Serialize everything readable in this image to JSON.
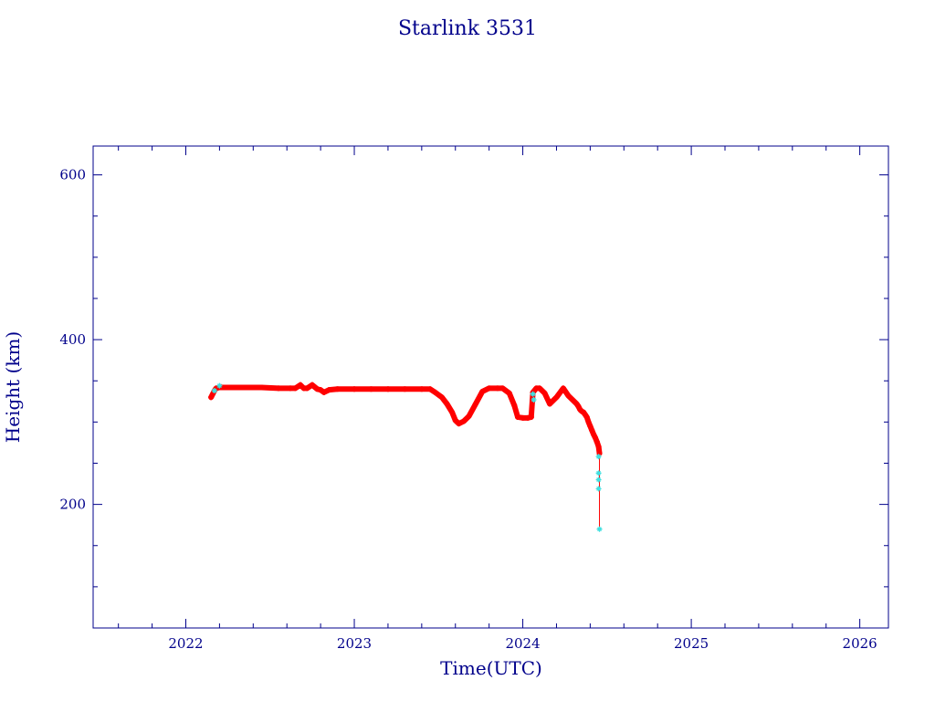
{
  "chart_data": {
    "type": "scatter",
    "title": "Starlink 3531",
    "xlabel": "Time(UTC)",
    "ylabel": "Height (km)",
    "xlim": [
      2021.45,
      2026.17
    ],
    "ylim": [
      50,
      635
    ],
    "x_ticks": [
      2022,
      2023,
      2024,
      2025,
      2026
    ],
    "y_ticks": [
      200,
      400,
      600
    ],
    "x_minor_step": 0.2,
    "y_minor_step": 50,
    "grid": false,
    "colors": {
      "axes": "#00008b",
      "series": "#ff0000",
      "markers": "#40e0e0"
    },
    "series": [
      {
        "marker": "plus",
        "x": [
          2022.15,
          2022.16,
          2022.17,
          2022.18,
          2022.2,
          2022.25,
          2022.35,
          2022.45,
          2022.55,
          2022.62,
          2022.65,
          2022.68,
          2022.7,
          2022.72,
          2022.75,
          2022.78,
          2022.8,
          2022.82,
          2022.85,
          2022.9,
          2023.0,
          2023.1,
          2023.2,
          2023.3,
          2023.4,
          2023.45,
          2023.48,
          2023.52,
          2023.55,
          2023.58,
          2023.6,
          2023.62,
          2023.65,
          2023.68,
          2023.72,
          2023.76,
          2023.8,
          2023.85,
          2023.88,
          2023.92,
          2023.95,
          2023.97,
          2024.0,
          2024.03,
          2024.05,
          2024.06,
          2024.08,
          2024.1,
          2024.13,
          2024.16,
          2024.2,
          2024.24,
          2024.27,
          2024.3,
          2024.32,
          2024.33,
          2024.34,
          2024.35,
          2024.36,
          2024.37,
          2024.38,
          2024.39,
          2024.4,
          2024.41,
          2024.42,
          2024.43,
          2024.44,
          2024.45,
          2024.455
        ],
        "y": [
          330,
          334,
          338,
          341,
          342,
          342,
          342,
          342,
          341,
          341,
          341,
          345,
          341,
          341,
          345,
          340,
          339,
          336,
          339,
          340,
          340,
          340,
          340,
          340,
          340,
          340,
          336,
          330,
          322,
          312,
          302,
          298,
          301,
          307,
          322,
          337,
          341,
          341,
          341,
          335,
          320,
          306,
          305,
          305,
          306,
          336,
          341,
          341,
          335,
          322,
          330,
          341,
          332,
          326,
          322,
          319,
          315,
          313,
          312,
          309,
          306,
          300,
          295,
          290,
          285,
          281,
          276,
          270,
          262
        ]
      },
      {
        "marker": "line",
        "x": [
          2024.455,
          2024.455,
          2024.455
        ],
        "y": [
          262,
          210,
          170
        ]
      },
      {
        "marker": "star",
        "x": [
          2022.17,
          2022.2,
          2024.06,
          2024.065,
          2024.45,
          2024.45,
          2024.45,
          2024.45,
          2024.455
        ],
        "y": [
          338,
          344,
          334,
          327,
          258,
          238,
          230,
          219,
          170
        ]
      }
    ]
  }
}
